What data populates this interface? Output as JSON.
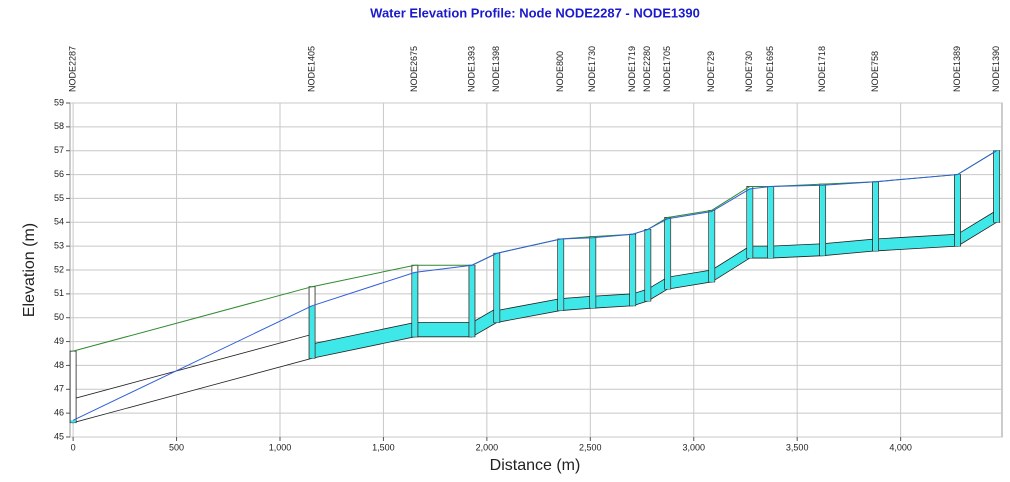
{
  "chart_data": {
    "type": "profile",
    "title": "Water Elevation Profile: Node NODE2287 - NODE1390",
    "xlabel": "Distance (m)",
    "ylabel": "Elevation (m)",
    "xlim": [
      -15,
      4490
    ],
    "ylim": [
      45,
      59
    ],
    "xticks": [
      0,
      500,
      {
        "value": 1000,
        "label": "1,000"
      },
      {
        "value": 1500,
        "label": "1,500"
      },
      {
        "value": 2000,
        "label": "2,000"
      },
      {
        "value": 2500,
        "label": "2,500"
      },
      {
        "value": 3000,
        "label": "3,000"
      },
      {
        "value": 3500,
        "label": "3,500"
      },
      {
        "value": 4000,
        "label": "4,000"
      }
    ],
    "yticks": [
      45,
      46,
      47,
      48,
      49,
      50,
      51,
      52,
      53,
      54,
      55,
      56,
      57,
      58,
      59
    ],
    "grid": true,
    "nodes": [
      "NODE2287",
      "NODE1405",
      "NODE2675",
      "NODE1393",
      "NODE1398",
      "NODE800",
      "NODE1730",
      "NODE1719",
      "NODE2280",
      "NODE1705",
      "NODE729",
      "NODE730",
      "NODE1695",
      "NODE1718",
      "NODE758",
      "NODE1389",
      "NODE1390"
    ],
    "x": [
      0,
      1155,
      1652,
      1928,
      2048,
      2357,
      2512,
      2705,
      2778,
      2874,
      3087,
      3271,
      3372,
      3623,
      3879,
      4275,
      4464
    ],
    "invert": [
      45.6,
      48.3,
      49.2,
      49.2,
      49.8,
      50.3,
      50.4,
      50.5,
      50.7,
      51.2,
      51.5,
      52.5,
      52.5,
      52.6,
      52.8,
      53.0,
      54.0
    ],
    "rim": [
      48.6,
      51.3,
      52.2,
      52.2,
      52.7,
      53.3,
      53.4,
      53.5,
      53.7,
      54.2,
      54.5,
      55.5,
      55.5,
      55.6,
      55.7,
      56.0,
      57.0
    ],
    "water": [
      45.7,
      50.5,
      51.9,
      52.2,
      52.7,
      53.3,
      53.35,
      53.5,
      53.7,
      54.15,
      54.45,
      55.4,
      55.5,
      55.55,
      55.7,
      56.0,
      57.0
    ],
    "conduit_depth": [
      1.0,
      0.6,
      0.6,
      0.6,
      0.5,
      0.5,
      0.5,
      0.5,
      0.5,
      0.5,
      0.5,
      0.5,
      0.5,
      0.5,
      0.5,
      0.5
    ],
    "water_color": "#2f5fd8",
    "rim_color": "#2e8b2e",
    "fill_color": "#3ee8e8"
  }
}
